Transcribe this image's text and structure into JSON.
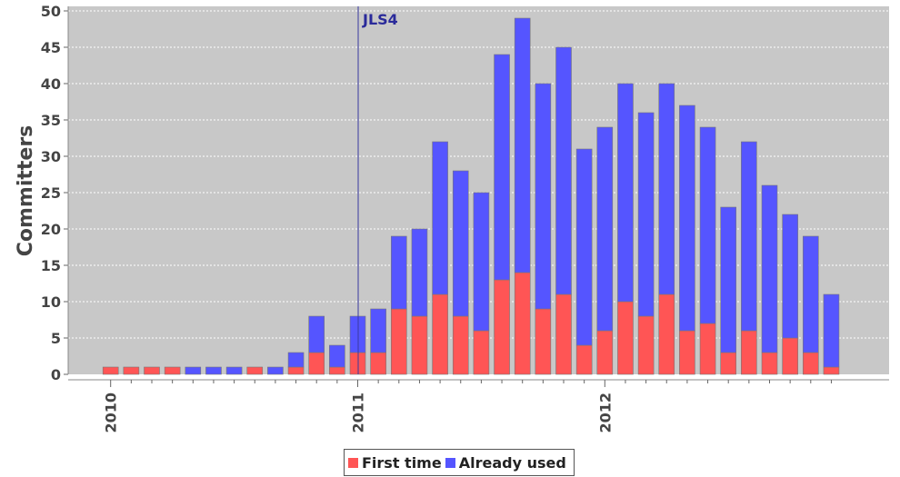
{
  "chart_data": {
    "type": "bar",
    "stacked": true,
    "title": "",
    "xlabel": "",
    "ylabel": "Committers",
    "ylim": [
      0,
      50
    ],
    "y_ticks": [
      0,
      5,
      10,
      15,
      20,
      25,
      30,
      35,
      40,
      45,
      50
    ],
    "x_tick_labels": [
      "2010",
      "2011",
      "2012"
    ],
    "categories": [
      "2010-01",
      "2010-02",
      "2010-03",
      "2010-04",
      "2010-05",
      "2010-06",
      "2010-07",
      "2010-08",
      "2010-09",
      "2010-10",
      "2010-11",
      "2010-12",
      "2011-01",
      "2011-02",
      "2011-03",
      "2011-04",
      "2011-05",
      "2011-06",
      "2011-07",
      "2011-08",
      "2011-09",
      "2011-10",
      "2011-11",
      "2011-12",
      "2012-01",
      "2012-02",
      "2012-03",
      "2012-04",
      "2012-05",
      "2012-06",
      "2012-07",
      "2012-08",
      "2012-09",
      "2012-10",
      "2012-11",
      "2012-12"
    ],
    "series": [
      {
        "name": "First time",
        "color": "#ff5555",
        "values": [
          1,
          1,
          1,
          1,
          0,
          0,
          0,
          1,
          0,
          1,
          3,
          1,
          3,
          3,
          9,
          8,
          11,
          8,
          6,
          13,
          14,
          9,
          11,
          4,
          6,
          10,
          8,
          11,
          6,
          7,
          3,
          6,
          3,
          5,
          3,
          1
        ]
      },
      {
        "name": "Already used",
        "color": "#5555ff",
        "values": [
          0,
          0,
          0,
          0,
          1,
          1,
          1,
          0,
          1,
          2,
          5,
          3,
          5,
          6,
          10,
          12,
          21,
          20,
          19,
          31,
          35,
          31,
          34,
          27,
          28,
          30,
          28,
          29,
          31,
          27,
          20,
          26,
          23,
          17,
          16,
          10
        ]
      }
    ],
    "annotations": [
      {
        "label": "JLS4",
        "x": "2011-01"
      }
    ],
    "grid": true,
    "legend_position": "bottom"
  }
}
